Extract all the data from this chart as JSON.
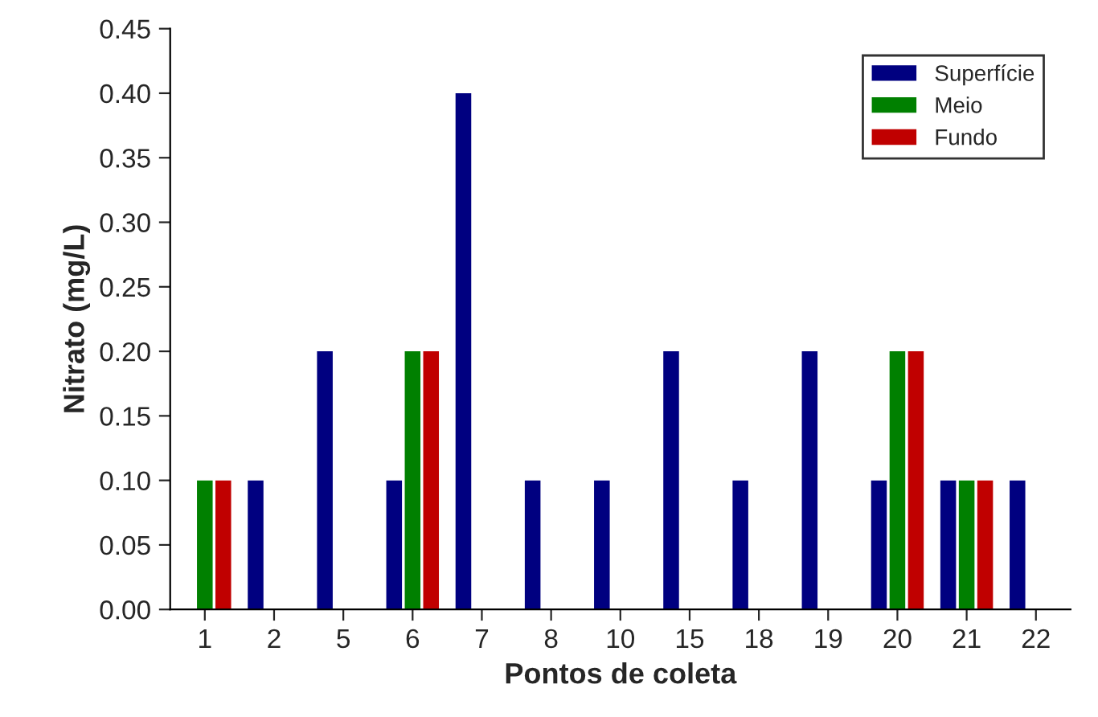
{
  "chart_data": {
    "type": "bar",
    "xlabel": "Pontos de coleta",
    "ylabel": "Nitrato (mg/L)",
    "categories": [
      "1",
      "2",
      "5",
      "6",
      "7",
      "8",
      "10",
      "15",
      "18",
      "19",
      "20",
      "21",
      "22"
    ],
    "series": [
      {
        "name": "Superfície",
        "color": "#000080",
        "values": [
          0,
          0.1,
          0.2,
          0.1,
          0.4,
          0.1,
          0.1,
          0.2,
          0.1,
          0.2,
          0.1,
          0.1,
          0.1
        ]
      },
      {
        "name": "Meio",
        "color": "#008000",
        "values": [
          0.1,
          0,
          0,
          0.2,
          0,
          0,
          0,
          0,
          0,
          0,
          0.2,
          0.1,
          0
        ]
      },
      {
        "name": "Fundo",
        "color": "#c00000",
        "values": [
          0.1,
          0,
          0,
          0.2,
          0,
          0,
          0,
          0,
          0,
          0,
          0.2,
          0.1,
          0
        ]
      }
    ],
    "ylim": [
      0,
      0.45
    ],
    "yticks": [
      {
        "value": 0,
        "label": "0.00"
      },
      {
        "value": 0.05,
        "label": "0.05"
      },
      {
        "value": 0.1,
        "label": "0.10"
      },
      {
        "value": 0.15,
        "label": "0.15"
      },
      {
        "value": 0.2,
        "label": "0.20"
      },
      {
        "value": 0.25,
        "label": "0.25"
      },
      {
        "value": 0.3,
        "label": "0.30"
      },
      {
        "value": 0.35,
        "label": "0.35"
      },
      {
        "value": 0.4,
        "label": "0.40"
      },
      {
        "value": 0.45,
        "label": "0.45"
      }
    ],
    "legend": "top right",
    "grid": false
  }
}
